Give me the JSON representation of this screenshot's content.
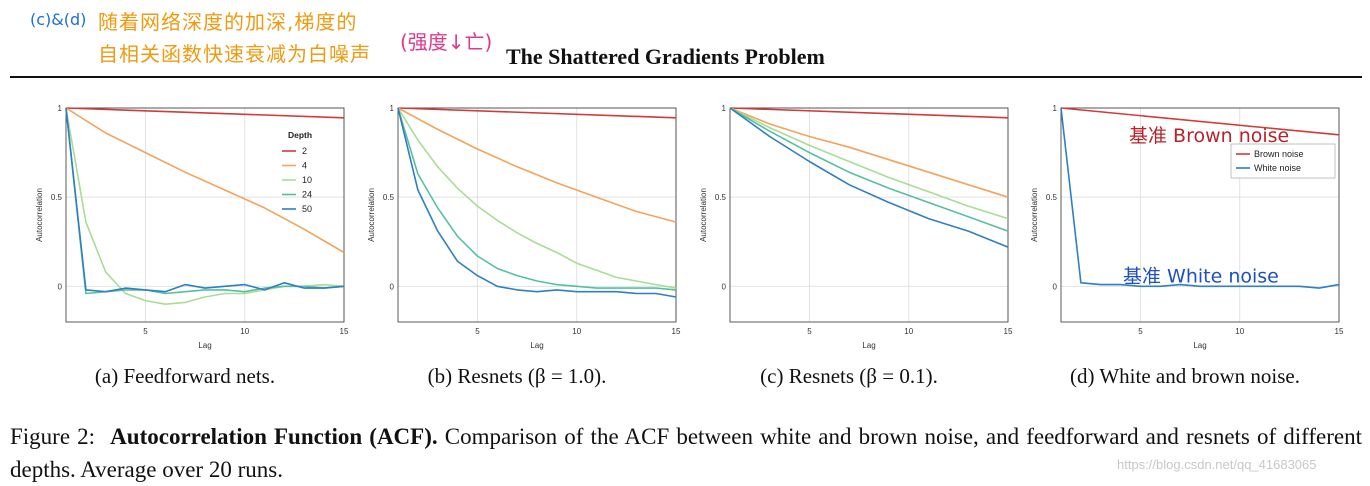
{
  "annotations": {
    "tag": "(c)&(d)",
    "line1": "随着网络深度的加深,梯度的",
    "line2": "自相关函数快速衰减为白噪声",
    "reference": "(强度↓亡)",
    "brown_note": "基准 Brown noise",
    "white_note": "基准 White noise"
  },
  "header": {
    "title": "The Shattered Gradients Problem"
  },
  "chart_data": [
    {
      "type": "line",
      "panel": "a",
      "xlabel": "Lag",
      "ylabel": "Autocorrelation",
      "xlim": [
        1,
        15
      ],
      "ylim": [
        -0.2,
        1
      ],
      "xticks": [
        "5",
        "10",
        "15"
      ],
      "yticks": [
        "0",
        "0.5",
        "1"
      ],
      "legend_title": "Depth",
      "legend_loc": "top-right",
      "series": [
        {
          "name": "2",
          "color": "#d33a3a",
          "x": [
            1,
            15
          ],
          "y": [
            1,
            0.945
          ]
        },
        {
          "name": "4",
          "color": "#f5a35a",
          "x": [
            1,
            3,
            5,
            7,
            9,
            11,
            13,
            15
          ],
          "y": [
            1,
            0.86,
            0.75,
            0.64,
            0.54,
            0.44,
            0.32,
            0.19
          ]
        },
        {
          "name": "10",
          "color": "#a9dd96",
          "x": [
            1,
            2,
            3,
            4,
            5,
            6,
            7,
            8,
            9,
            10,
            11,
            12,
            13,
            14,
            15
          ],
          "y": [
            1,
            0.36,
            0.08,
            -0.04,
            -0.08,
            -0.1,
            -0.09,
            -0.06,
            -0.04,
            -0.04,
            -0.02,
            0,
            0,
            0.01,
            0
          ]
        },
        {
          "name": "24",
          "color": "#55c0a0",
          "x": [
            1,
            2,
            3,
            4,
            5,
            6,
            7,
            8,
            9,
            10,
            11,
            12,
            13,
            14,
            15
          ],
          "y": [
            1,
            -0.04,
            -0.03,
            -0.02,
            -0.02,
            -0.04,
            -0.03,
            -0.02,
            -0.02,
            -0.03,
            -0.01,
            0,
            0,
            -0.01,
            0
          ]
        },
        {
          "name": "50",
          "color": "#2f7fc2",
          "x": [
            1,
            2,
            3,
            4,
            5,
            6,
            7,
            8,
            9,
            10,
            11,
            12,
            13,
            14,
            15
          ],
          "y": [
            1,
            -0.02,
            -0.03,
            -0.01,
            -0.02,
            -0.03,
            0.01,
            -0.01,
            0,
            0.01,
            -0.02,
            0.02,
            -0.01,
            -0.01,
            0
          ]
        }
      ]
    },
    {
      "type": "line",
      "panel": "b",
      "xlabel": "Lag",
      "ylabel": "Autocorrelation",
      "xlim": [
        1,
        15
      ],
      "ylim": [
        -0.2,
        1
      ],
      "xticks": [
        "5",
        "10",
        "15"
      ],
      "yticks": [
        "0",
        "0.5",
        "1"
      ],
      "series": [
        {
          "name": "2",
          "color": "#d33a3a",
          "x": [
            1,
            15
          ],
          "y": [
            1,
            0.945
          ]
        },
        {
          "name": "4",
          "color": "#f5a35a",
          "x": [
            1,
            3,
            5,
            7,
            9,
            11,
            13,
            15
          ],
          "y": [
            1,
            0.88,
            0.77,
            0.67,
            0.58,
            0.5,
            0.42,
            0.36
          ]
        },
        {
          "name": "10",
          "color": "#a9dd96",
          "x": [
            1,
            2,
            3,
            4,
            5,
            6,
            7,
            8,
            9,
            10,
            11,
            12,
            13,
            14,
            15
          ],
          "y": [
            1,
            0.82,
            0.67,
            0.55,
            0.45,
            0.37,
            0.3,
            0.24,
            0.19,
            0.13,
            0.09,
            0.05,
            0.03,
            0.01,
            -0.01
          ]
        },
        {
          "name": "24",
          "color": "#55c0a0",
          "x": [
            1,
            2,
            3,
            4,
            5,
            6,
            7,
            8,
            9,
            10,
            11,
            12,
            13,
            14,
            15
          ],
          "y": [
            1,
            0.63,
            0.44,
            0.28,
            0.17,
            0.1,
            0.06,
            0.03,
            0.01,
            0,
            -0.01,
            -0.01,
            -0.01,
            -0.01,
            -0.02
          ]
        },
        {
          "name": "50",
          "color": "#2f7fc2",
          "x": [
            1,
            2,
            3,
            4,
            5,
            6,
            7,
            8,
            9,
            10,
            11,
            12,
            13,
            14,
            15
          ],
          "y": [
            1,
            0.54,
            0.31,
            0.14,
            0.06,
            0,
            -0.02,
            -0.03,
            -0.02,
            -0.03,
            -0.03,
            -0.03,
            -0.04,
            -0.04,
            -0.06
          ]
        }
      ]
    },
    {
      "type": "line",
      "panel": "c",
      "xlabel": "Lag",
      "ylabel": "Autocorrelation",
      "xlim": [
        1,
        15
      ],
      "ylim": [
        -0.2,
        1
      ],
      "xticks": [
        "5",
        "10",
        "15"
      ],
      "yticks": [
        "0",
        "0.5",
        "1"
      ],
      "series": [
        {
          "name": "2",
          "color": "#d33a3a",
          "x": [
            1,
            15
          ],
          "y": [
            1,
            0.945
          ]
        },
        {
          "name": "4",
          "color": "#f5a35a",
          "x": [
            1,
            3,
            5,
            7,
            9,
            11,
            13,
            15
          ],
          "y": [
            1,
            0.91,
            0.84,
            0.78,
            0.71,
            0.64,
            0.57,
            0.5
          ]
        },
        {
          "name": "10",
          "color": "#a9dd96",
          "x": [
            1,
            3,
            5,
            7,
            9,
            11,
            13,
            15
          ],
          "y": [
            1,
            0.89,
            0.79,
            0.7,
            0.61,
            0.53,
            0.45,
            0.38
          ]
        },
        {
          "name": "24",
          "color": "#55c0a0",
          "x": [
            1,
            3,
            5,
            7,
            9,
            11,
            13,
            15
          ],
          "y": [
            1,
            0.87,
            0.75,
            0.64,
            0.55,
            0.47,
            0.39,
            0.31
          ]
        },
        {
          "name": "50",
          "color": "#2f7fc2",
          "x": [
            1,
            3,
            5,
            7,
            9,
            11,
            13,
            15
          ],
          "y": [
            1,
            0.84,
            0.7,
            0.57,
            0.47,
            0.38,
            0.31,
            0.22
          ]
        }
      ]
    },
    {
      "type": "line",
      "panel": "d",
      "xlabel": "Lag",
      "ylabel": "Autocorrelation",
      "xlim": [
        1,
        15
      ],
      "ylim": [
        -0.2,
        1
      ],
      "xticks": [
        "5",
        "10",
        "15"
      ],
      "yticks": [
        "0",
        "0.5",
        "1"
      ],
      "legend_loc": "top-right",
      "series": [
        {
          "name": "Brown noise",
          "color": "#d33a3a",
          "x": [
            1,
            15
          ],
          "y": [
            1,
            0.85
          ]
        },
        {
          "name": "White noise",
          "color": "#2f7fc2",
          "x": [
            1,
            2,
            3,
            4,
            5,
            6,
            7,
            8,
            9,
            10,
            11,
            12,
            13,
            14,
            15
          ],
          "y": [
            1,
            0.02,
            0.01,
            0.01,
            0,
            0,
            0.01,
            0,
            0,
            0,
            0,
            0,
            0,
            -0.01,
            0.01
          ]
        }
      ]
    }
  ],
  "subcaptions": [
    {
      "label": "(a) Feedforward nets."
    },
    {
      "label": "(b) Resnets (β = 1.0)."
    },
    {
      "label": "(c) Resnets (β = 0.1)."
    },
    {
      "label": "(d) White and brown noise."
    }
  ],
  "caption": {
    "label": "Figure 2:",
    "bold": "Autocorrelation Function (ACF).",
    "text": "Comparison of the ACF between white and brown noise, and feedforward and resnets of different depths. Average over 20 runs."
  },
  "watermark": "https://blog.csdn.net/qq_41683065"
}
